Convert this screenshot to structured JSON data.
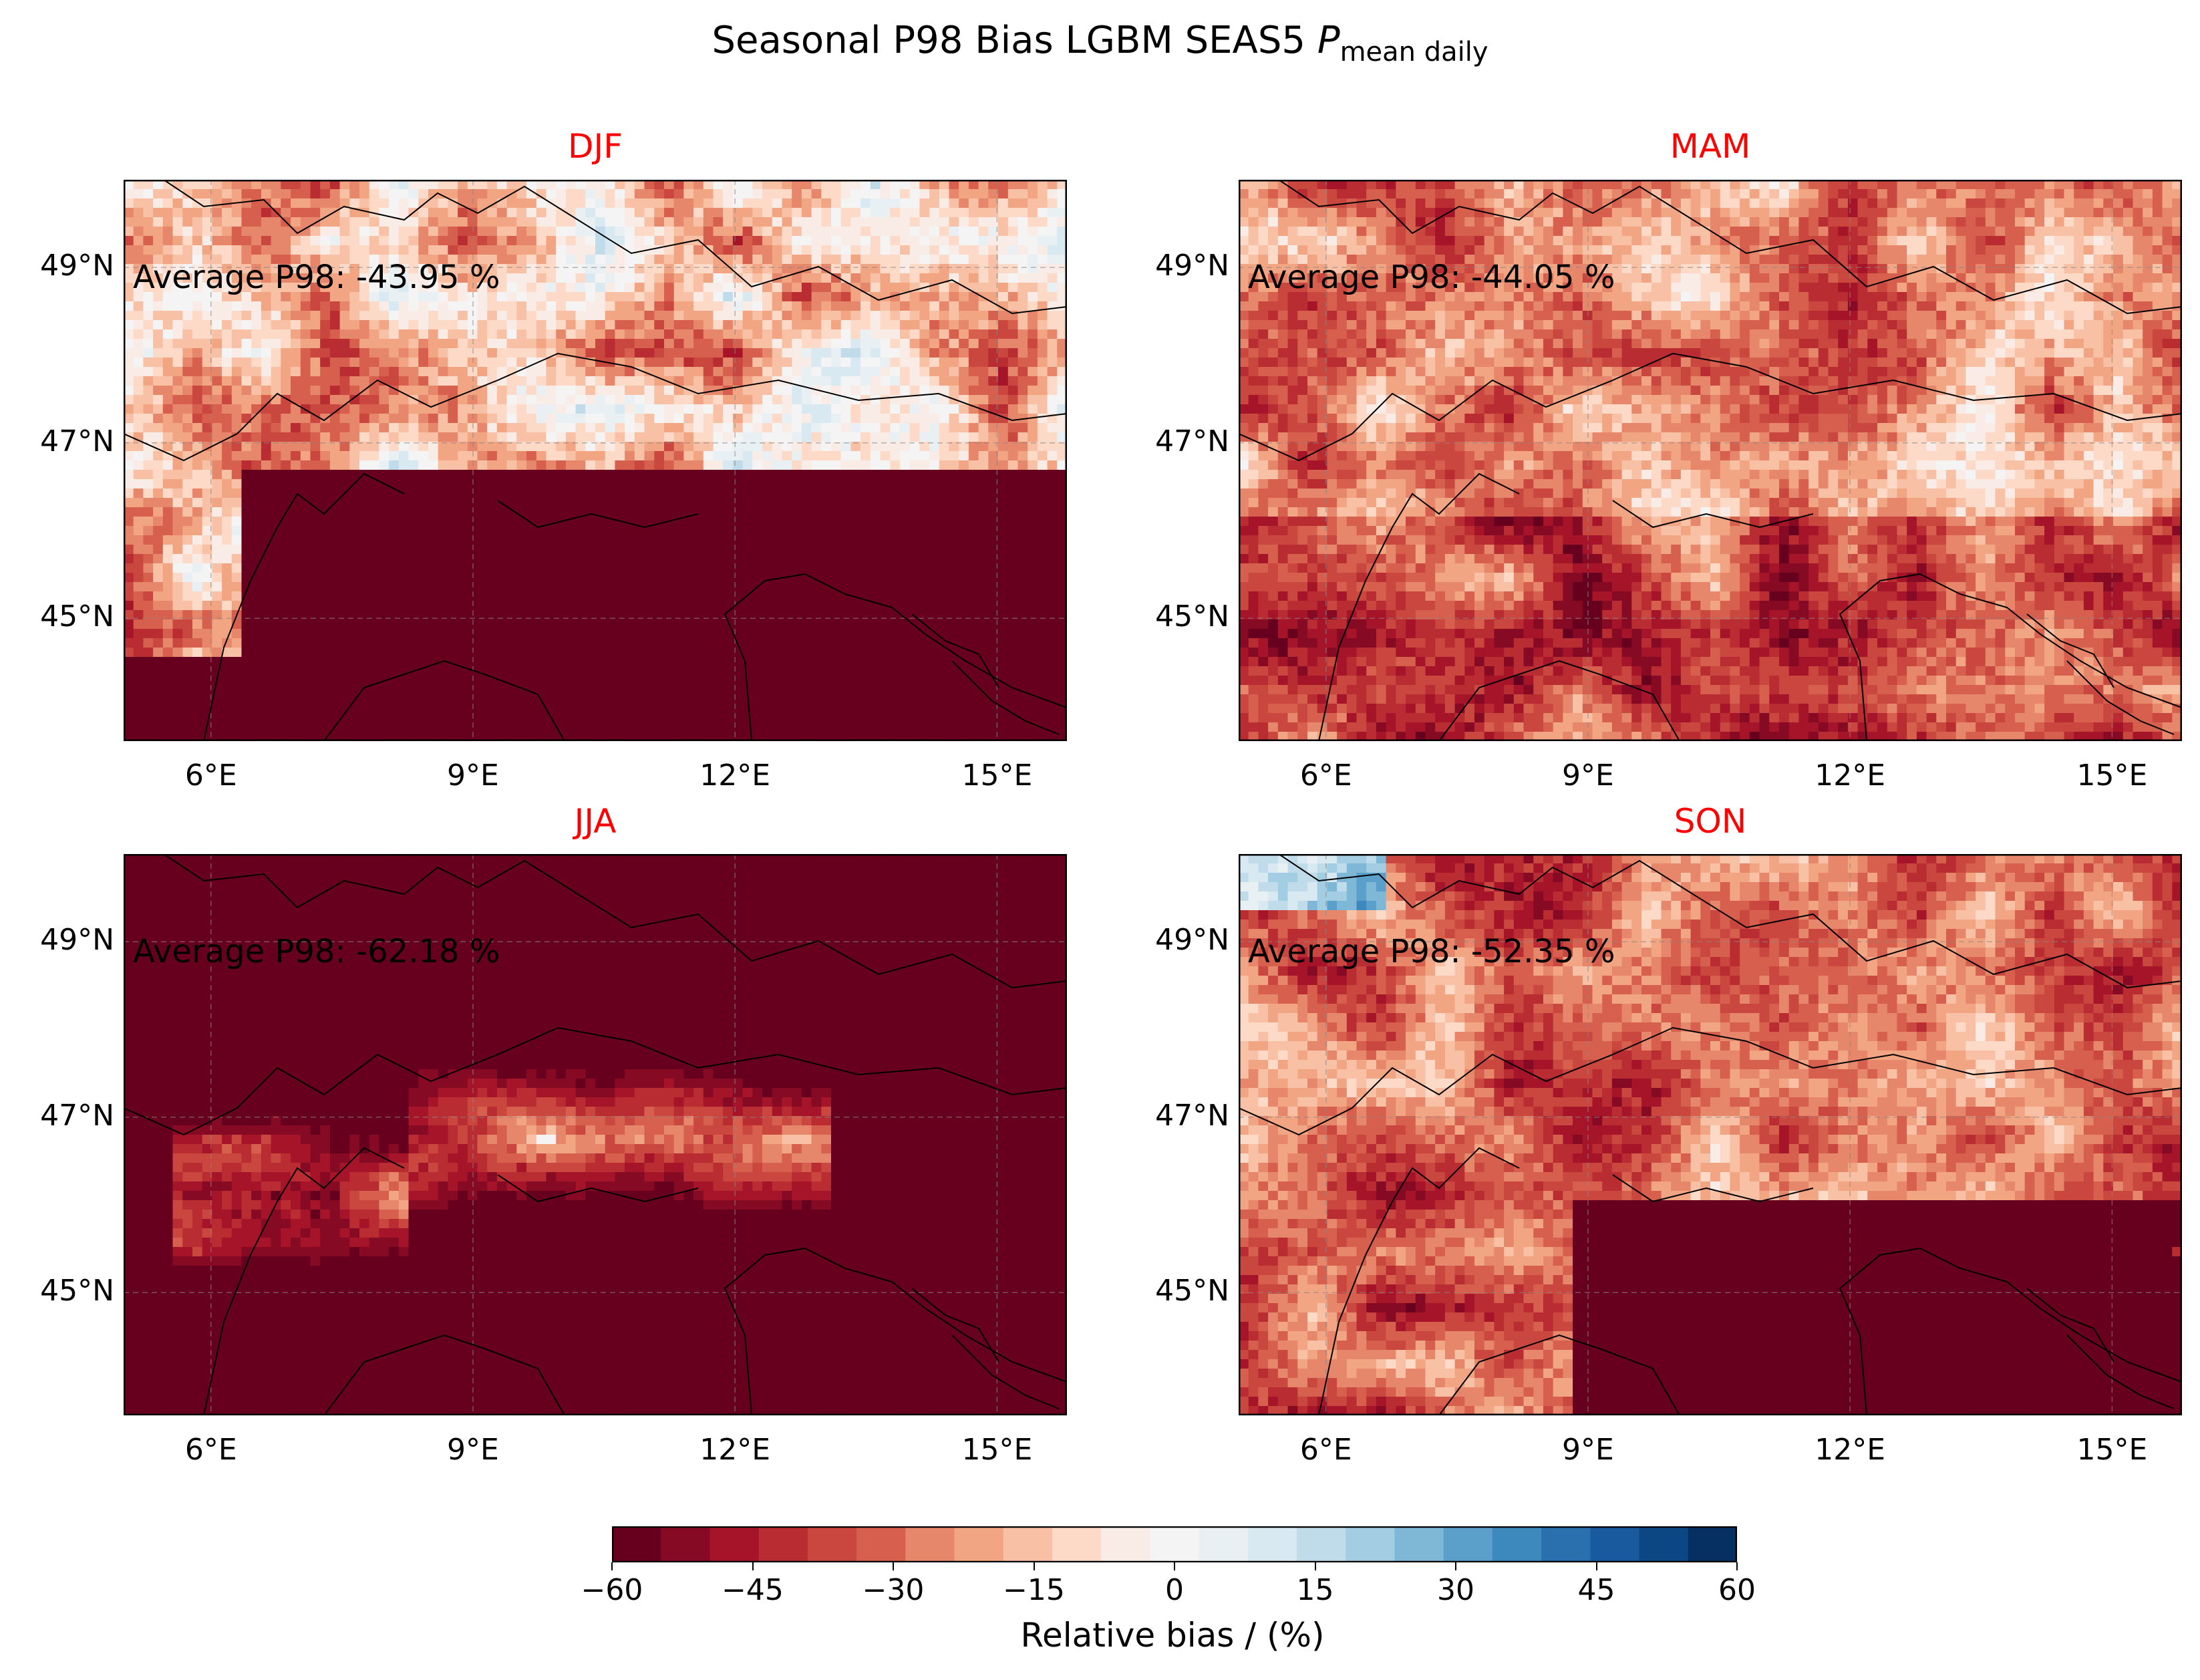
{
  "figure": {
    "title_main": "Seasonal P98 Bias LGBM SEAS5 ",
    "title_symbol": "P",
    "title_subscript": "mean daily"
  },
  "axes": {
    "lon_ticks": [
      "6°E",
      "9°E",
      "12°E",
      "15°E"
    ],
    "lat_ticks": [
      "49°N",
      "47°N",
      "45°N"
    ]
  },
  "panels": [
    {
      "season": "DJF",
      "average_label": "Average P98: -43.95 %",
      "average_value": -43.95
    },
    {
      "season": "MAM",
      "average_label": "Average P98: -44.05 %",
      "average_value": -44.05
    },
    {
      "season": "JJA",
      "average_label": "Average P98: -62.18 %",
      "average_value": -62.18
    },
    {
      "season": "SON",
      "average_label": "Average P98: -52.35 %",
      "average_value": -52.35
    }
  ],
  "colorbar": {
    "label": "Relative bias / (%)",
    "ticks": [
      "−60",
      "−45",
      "−30",
      "−15",
      "0",
      "15",
      "30",
      "45",
      "60"
    ],
    "min": -60,
    "max": 60,
    "colormap": "RdBu",
    "colors": [
      "#67001f",
      "#870a24",
      "#a51429",
      "#b92d32",
      "#c9473e",
      "#d6604d",
      "#e6866b",
      "#f2a582",
      "#f8c0a4",
      "#fcdac7",
      "#f9ece6",
      "#f4f4f4",
      "#e9f0f4",
      "#d9e9f1",
      "#c0dceb",
      "#a2cde3",
      "#7fb7d7",
      "#5b9fcb",
      "#3d88bd",
      "#2a6fae",
      "#19599e",
      "#0d4783",
      "#053061"
    ]
  },
  "colors": {
    "panel_title": "#ff0000",
    "background_bias": "#67001f"
  }
}
